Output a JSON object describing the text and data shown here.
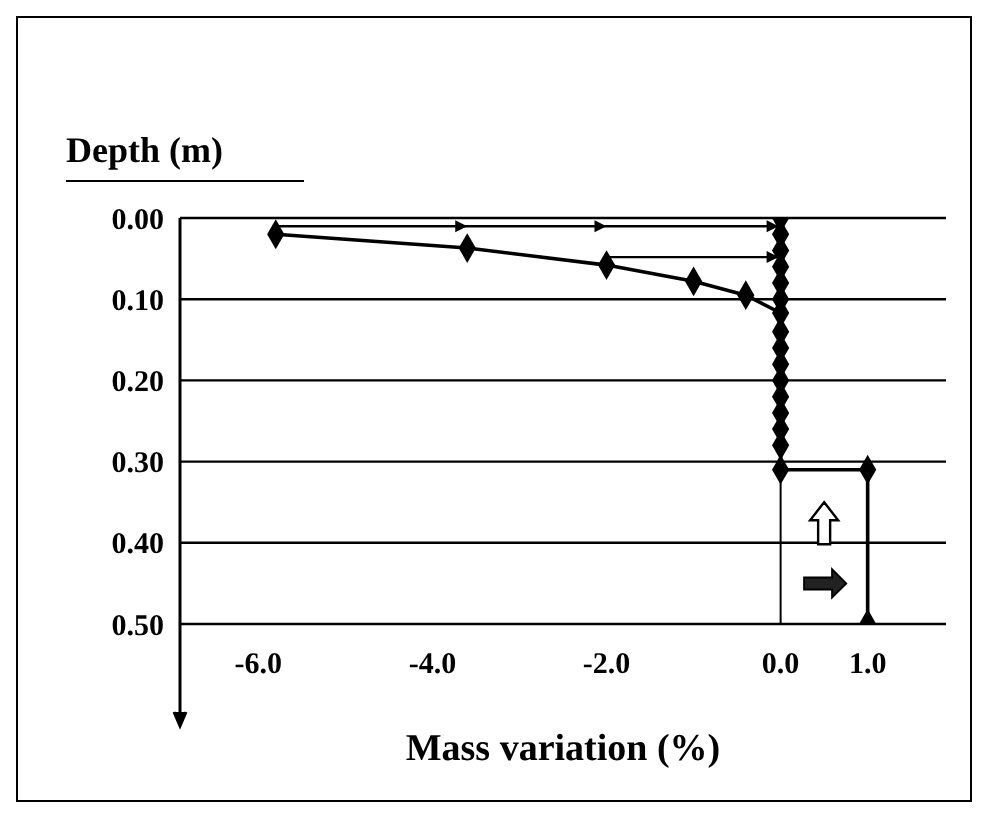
{
  "chart_data": {
    "type": "line",
    "xlabel": "Mass variation (%)",
    "ylabel": "Depth (m)",
    "xlim": [
      -6.9,
      1.9
    ],
    "xticks": [
      {
        "value": -6,
        "label": "-6.0"
      },
      {
        "value": -4,
        "label": "-4.0"
      },
      {
        "value": -2,
        "label": "-2.0"
      },
      {
        "value": 0,
        "label": "0.0"
      },
      {
        "value": 1,
        "label": "1.0"
      }
    ],
    "ylim": [
      0.5,
      0
    ],
    "yticks": [
      {
        "value": 0,
        "label": "0.00"
      },
      {
        "value": 0.1,
        "label": "0.10"
      },
      {
        "value": 0.2,
        "label": "0.20"
      },
      {
        "value": 0.3,
        "label": "0.30"
      },
      {
        "value": 0.4,
        "label": "0.40"
      },
      {
        "value": 0.5,
        "label": "0.50"
      }
    ],
    "grid": "y",
    "marker": "diamond",
    "line_style": "solid",
    "ref_lines": [
      {
        "axis": "x",
        "value": 0,
        "color": "#000000"
      }
    ],
    "series": [
      {
        "color": "#000000",
        "x": [
          -5.8,
          -3.6,
          -2.0,
          -1.0,
          -0.4,
          0.0
        ],
        "values": [
          0.02,
          0.037,
          0.058,
          0.078,
          0.095,
          0.117
        ]
      },
      {
        "color": "#000000",
        "x": [
          0,
          0,
          0,
          0,
          0,
          0,
          0,
          0,
          0,
          0,
          0,
          0,
          0,
          0,
          0,
          1,
          1
        ],
        "values": [
          0,
          0.02,
          0.04,
          0.06,
          0.08,
          0.1,
          0.14,
          0.16,
          0.18,
          0.2,
          0.22,
          0.24,
          0.26,
          0.28,
          0.31,
          0.31,
          0.5
        ]
      }
    ]
  }
}
